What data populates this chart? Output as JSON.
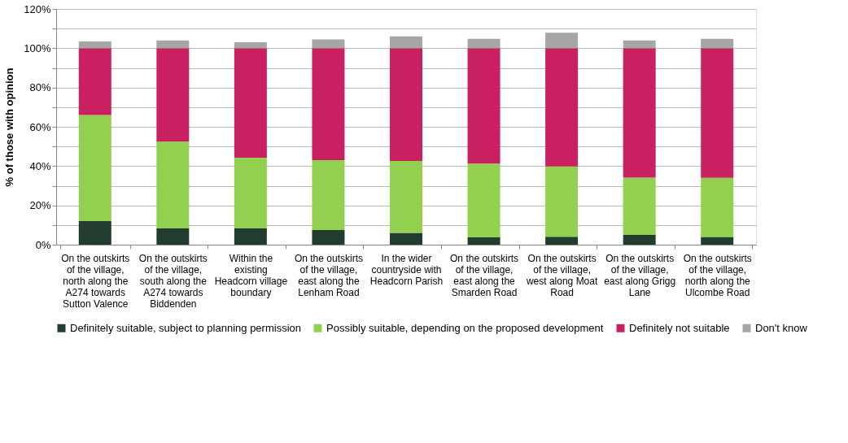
{
  "chart_data": {
    "type": "bar",
    "stacked": true,
    "ylabel": "% of those with opinion",
    "categories": [
      "On the outskirts of the village, north along the A274 towards Sutton Valence",
      "On the outskirts of the village, south along the A274 towards Biddenden",
      "Within the existing Headcorn village boundary",
      "On the outskirts of the village, east along the Lenham Road",
      "In the wider countryside with Headcorn Parish",
      "On the outskirts of the village, east along the Smarden Road",
      "On the outskirts of the village, west along Moat Road",
      "On the outskirts of the village, east along Grigg Lane",
      "On the outskirts of the village, north along the Ulcombe Road"
    ],
    "series": [
      {
        "name": "Definitely suitable, subject to planning permission",
        "color": "#223d2f",
        "values": [
          12,
          8.3,
          8.3,
          7.5,
          6,
          3.7,
          4,
          5,
          3.9
        ]
      },
      {
        "name": "Possibly suitable, depending on the proposed development",
        "color": "#92d050",
        "values": [
          54,
          44.2,
          36,
          35.5,
          36.6,
          37.6,
          35.8,
          29.1,
          30.1
        ]
      },
      {
        "name": "Definitely not suitable",
        "color": "#c92062",
        "values": [
          34,
          47.5,
          55.7,
          57,
          57.4,
          58.7,
          60.2,
          65.9,
          66
        ]
      },
      {
        "name": "Don't know",
        "color": "#a6a6a6",
        "values": [
          3.5,
          4,
          3,
          4.5,
          6,
          4.8,
          7.9,
          4,
          4.8
        ]
      }
    ],
    "ylim": [
      0,
      120
    ],
    "yticks": [
      {
        "value": 0,
        "label": "0%"
      },
      {
        "value": 10,
        "label": null
      },
      {
        "value": 20,
        "label": "20%"
      },
      {
        "value": 30,
        "label": null
      },
      {
        "value": 40,
        "label": "40%"
      },
      {
        "value": 50,
        "label": null
      },
      {
        "value": 60,
        "label": "60%"
      },
      {
        "value": 70,
        "label": null
      },
      {
        "value": 80,
        "label": "80%"
      },
      {
        "value": 90,
        "label": null
      },
      {
        "value": 100,
        "label": "100%"
      },
      {
        "value": 110,
        "label": null
      },
      {
        "value": 120,
        "label": "120%"
      }
    ],
    "grid": "y",
    "legend": "bottom"
  }
}
